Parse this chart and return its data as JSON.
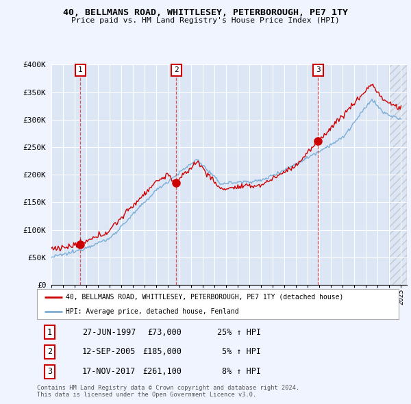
{
  "title": "40, BELLMANS ROAD, WHITTLESEY, PETERBOROUGH, PE7 1TY",
  "subtitle": "Price paid vs. HM Land Registry's House Price Index (HPI)",
  "ylim": [
    0,
    400000
  ],
  "yticks": [
    0,
    50000,
    100000,
    150000,
    200000,
    250000,
    300000,
    350000,
    400000
  ],
  "ytick_labels": [
    "£0",
    "£50K",
    "£100K",
    "£150K",
    "£200K",
    "£250K",
    "£300K",
    "£350K",
    "£400K"
  ],
  "xlim_start": 1995.0,
  "xlim_end": 2025.5,
  "background_color": "#f0f4ff",
  "plot_bg_color": "#dce6f5",
  "grid_color": "#ffffff",
  "sale_dates": [
    1997.49,
    2005.71,
    2017.88
  ],
  "sale_prices": [
    73000,
    185000,
    261100
  ],
  "sale_labels": [
    "1",
    "2",
    "3"
  ],
  "red_line_color": "#cc0000",
  "blue_line_color": "#7aaed6",
  "dot_color": "#cc0000",
  "vline_color": "#dd4444",
  "legend_label_red": "40, BELLMANS ROAD, WHITTLESEY, PETERBOROUGH, PE7 1TY (detached house)",
  "legend_label_blue": "HPI: Average price, detached house, Fenland",
  "table_rows": [
    [
      "1",
      "27-JUN-1997",
      "£73,000",
      "25% ↑ HPI"
    ],
    [
      "2",
      "12-SEP-2005",
      "£185,000",
      "5% ↑ HPI"
    ],
    [
      "3",
      "17-NOV-2017",
      "£261,100",
      "8% ↑ HPI"
    ]
  ],
  "footnote": "Contains HM Land Registry data © Crown copyright and database right 2024.\nThis data is licensed under the Open Government Licence v3.0."
}
